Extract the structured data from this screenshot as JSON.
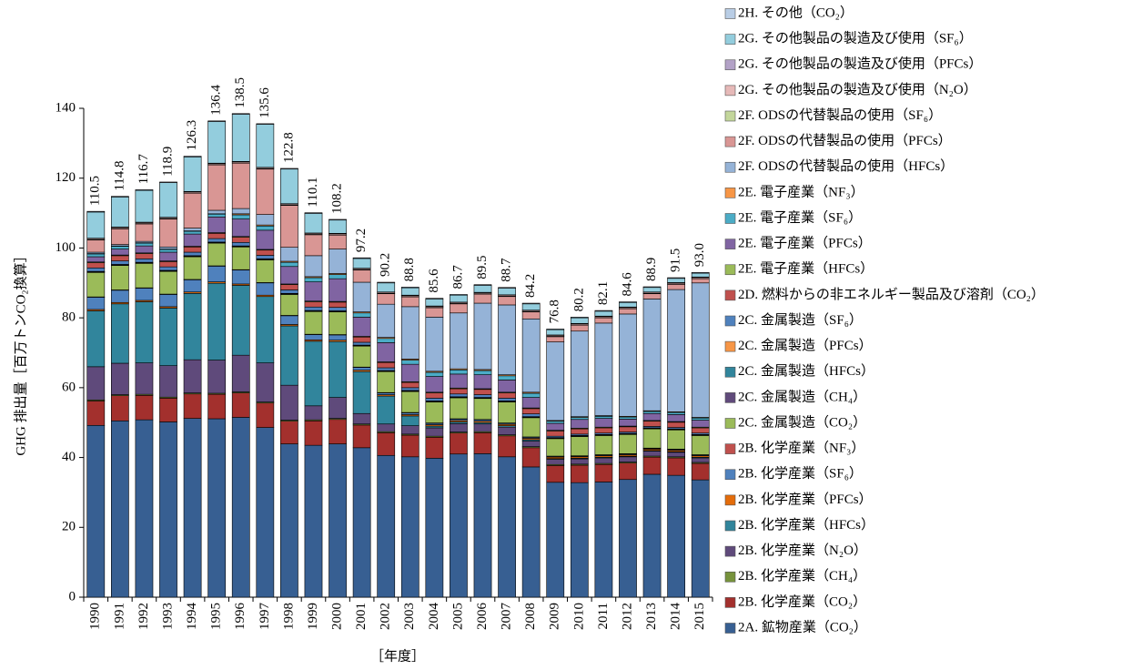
{
  "chart_data": {
    "type": "stacked_bar",
    "y_label": "GHG 排出量［百万トンCO₂換算］",
    "x_label": "［年度］",
    "categories": [
      "1990",
      "1991",
      "1992",
      "1993",
      "1994",
      "1995",
      "1996",
      "1997",
      "1998",
      "1999",
      "2000",
      "2001",
      "2002",
      "2003",
      "2004",
      "2005",
      "2006",
      "2007",
      "2008",
      "2009",
      "2010",
      "2011",
      "2012",
      "2013",
      "2014",
      "2015"
    ],
    "ylim": [
      0,
      140
    ],
    "yticks": [
      0,
      20,
      40,
      60,
      80,
      100,
      120,
      140
    ],
    "totals": {
      "values": [
        110.5,
        114.8,
        116.7,
        118.9,
        126.3,
        136.4,
        138.5,
        135.6,
        122.8,
        110.1,
        108.2,
        97.2,
        90.2,
        88.8,
        85.6,
        86.7,
        89.5,
        88.7,
        84.2,
        76.8,
        80.2,
        82.1,
        84.6,
        88.9,
        91.5,
        93.0
      ],
      "value_labels": [
        "110.5",
        "114.8",
        "116.7",
        "118.9",
        "126.3",
        "136.4",
        "138.5",
        "135.6",
        "122.8",
        "110.1",
        "108.2",
        "97.2",
        "90.2",
        "88.8",
        "85.6",
        "86.7",
        "89.5",
        "88.7",
        "84.2",
        "76.8",
        "80.2",
        "82.1",
        "84.6",
        "88.9",
        "91.5",
        "93.0"
      ]
    },
    "series": [
      {
        "name": "2A. 鉱物産業（CO₂）",
        "color": "#375f92",
        "values": [
          49.2,
          50.5,
          50.8,
          50.2,
          51.2,
          51.1,
          51.5,
          48.6,
          43.9,
          43.5,
          43.9,
          42.8,
          40.6,
          40.2,
          39.8,
          41.0,
          41.1,
          40.2,
          37.3,
          32.9,
          32.8,
          33.0,
          33.7,
          35.2,
          34.9,
          33.6
        ]
      },
      {
        "name": "2B. 化学産業（CO₂）",
        "color": "#a3302d",
        "values": [
          7.0,
          7.2,
          7.0,
          6.8,
          7.0,
          7.0,
          7.0,
          7.0,
          6.5,
          7.0,
          7.0,
          6.5,
          6.5,
          6.2,
          6.0,
          6.0,
          6.0,
          6.0,
          5.5,
          4.8,
          5.0,
          5.0,
          4.7,
          4.9,
          5.0,
          4.7
        ]
      },
      {
        "name": "2B. 化学産業（CH₄）",
        "color": "#77933c",
        "values": [
          0.3,
          0.3,
          0.3,
          0.3,
          0.3,
          0.3,
          0.3,
          0.3,
          0.3,
          0.3,
          0.3,
          0.3,
          0.3,
          0.3,
          0.3,
          0.3,
          0.3,
          0.3,
          0.3,
          0.3,
          0.3,
          0.3,
          0.3,
          0.3,
          0.3,
          0.3
        ]
      },
      {
        "name": "2B. 化学産業（N₂O）",
        "color": "#5f4a7b",
        "values": [
          9.5,
          9.0,
          9.0,
          9.0,
          9.5,
          9.5,
          10.5,
          11.2,
          10.0,
          4.0,
          6.0,
          3.0,
          2.2,
          2.4,
          2.4,
          2.4,
          2.2,
          2.2,
          1.6,
          1.5,
          1.5,
          1.6,
          1.5,
          1.4,
          1.3,
          1.3
        ]
      },
      {
        "name": "2B. 化学産業（HFCs）",
        "color": "#31859c",
        "values": [
          16.0,
          17.0,
          17.5,
          16.5,
          19.0,
          22.0,
          20.0,
          19.0,
          17.0,
          18.5,
          16.0,
          12.0,
          8.0,
          2.8,
          0.5,
          0.5,
          0.4,
          0.4,
          0.4,
          0.2,
          0.2,
          0.2,
          0.2,
          0.2,
          0.2,
          0.2
        ]
      },
      {
        "name": "2B. 化学産業（PFCs）",
        "color": "#e46c0a",
        "values": [
          0.4,
          0.4,
          0.4,
          0.4,
          0.4,
          0.4,
          0.4,
          0.4,
          0.4,
          0.4,
          0.4,
          0.4,
          0.4,
          0.4,
          0.4,
          0.4,
          0.4,
          0.4,
          0.4,
          0.4,
          0.4,
          0.4,
          0.4,
          0.4,
          0.4,
          0.4
        ]
      },
      {
        "name": "2B. 化学産業（SF₆）",
        "color": "#4f81bd",
        "values": [
          3.5,
          3.5,
          3.5,
          3.5,
          3.5,
          4.5,
          4.0,
          3.5,
          2.5,
          1.5,
          1.5,
          0.8,
          0.5,
          0.5,
          0.4,
          0.4,
          0.4,
          0.3,
          0.3,
          0.2,
          0.2,
          0.2,
          0.2,
          0.2,
          0.2,
          0.2
        ]
      },
      {
        "name": "2B. 化学産業（NF₃）",
        "color": "#c0504d",
        "values": [
          0.1,
          0.1,
          0.1,
          0.1,
          0.1,
          0.1,
          0.1,
          0.1,
          0.1,
          0.1,
          0.1,
          0.1,
          0.1,
          0.1,
          0.1,
          0.1,
          0.1,
          0.1,
          0.1,
          0.1,
          0.1,
          0.1,
          0.1,
          0.1,
          0.1,
          0.1
        ]
      },
      {
        "name": "2C. 金属製造（CO₂）",
        "color": "#9bbb59",
        "values": [
          7.0,
          7.0,
          7.0,
          6.5,
          6.5,
          6.5,
          6.5,
          6.5,
          6.0,
          6.5,
          6.5,
          6.0,
          6.0,
          6.0,
          6.0,
          6.0,
          6.0,
          6.0,
          5.5,
          5.0,
          5.5,
          5.5,
          5.5,
          5.5,
          5.5,
          5.5
        ]
      },
      {
        "name": "2C. 金属製造（CH₄）",
        "color": "#604a7b",
        "values": [
          0.1,
          0.1,
          0.1,
          0.1,
          0.1,
          0.1,
          0.1,
          0.1,
          0.1,
          0.1,
          0.1,
          0.1,
          0.1,
          0.1,
          0.1,
          0.1,
          0.1,
          0.1,
          0.1,
          0.1,
          0.1,
          0.1,
          0.1,
          0.1,
          0.1,
          0.1
        ]
      },
      {
        "name": "2C. 金属製造（HFCs）",
        "color": "#31859c",
        "values": [
          0.1,
          0.1,
          0.1,
          0.1,
          0.1,
          0.1,
          0.1,
          0.1,
          0.1,
          0.1,
          0.1,
          0.1,
          0.1,
          0.1,
          0.1,
          0.1,
          0.1,
          0.1,
          0.1,
          0.1,
          0.1,
          0.1,
          0.1,
          0.1,
          0.1,
          0.1
        ]
      },
      {
        "name": "2C. 金属製造（PFCs）",
        "color": "#f79646",
        "values": [
          0.1,
          0.1,
          0.1,
          0.1,
          0.1,
          0.1,
          0.1,
          0.1,
          0.1,
          0.1,
          0.1,
          0.1,
          0.1,
          0.1,
          0.1,
          0.1,
          0.1,
          0.1,
          0.1,
          0.1,
          0.1,
          0.1,
          0.1,
          0.1,
          0.1,
          0.1
        ]
      },
      {
        "name": "2C. 金属製造（SF₆）",
        "color": "#4f81bd",
        "values": [
          1.0,
          1.0,
          1.0,
          1.0,
          1.0,
          1.0,
          1.0,
          1.0,
          1.0,
          1.0,
          1.0,
          0.8,
          0.8,
          0.8,
          0.8,
          0.8,
          0.8,
          0.8,
          0.8,
          0.4,
          0.4,
          0.4,
          0.4,
          0.4,
          0.4,
          0.4
        ]
      },
      {
        "name": "2D. 燃料からの非エネルギー製品及び溶剤（CO₂）",
        "color": "#c0504d",
        "values": [
          1.5,
          1.5,
          1.5,
          1.5,
          1.5,
          1.5,
          1.5,
          1.5,
          1.5,
          1.5,
          1.5,
          1.5,
          1.5,
          1.5,
          1.5,
          1.5,
          1.5,
          1.5,
          1.5,
          1.5,
          1.5,
          1.5,
          1.5,
          1.5,
          1.5,
          1.5
        ]
      },
      {
        "name": "2E. 電子産業（HFCs）",
        "color": "#9bbb59",
        "values": [
          0.2,
          0.2,
          0.2,
          0.2,
          0.2,
          0.2,
          0.2,
          0.2,
          0.2,
          0.2,
          0.2,
          0.2,
          0.2,
          0.2,
          0.2,
          0.2,
          0.2,
          0.2,
          0.2,
          0.2,
          0.2,
          0.2,
          0.2,
          0.2,
          0.2,
          0.2
        ]
      },
      {
        "name": "2E. 電子産業（PFCs）",
        "color": "#8064a2",
        "values": [
          1.5,
          1.7,
          2.0,
          2.5,
          3.5,
          4.5,
          5.0,
          5.5,
          5.0,
          5.5,
          6.5,
          5.5,
          5.5,
          5.0,
          4.5,
          4.0,
          4.0,
          3.5,
          3.0,
          2.0,
          2.5,
          2.5,
          2.0,
          2.0,
          2.0,
          2.0
        ]
      },
      {
        "name": "2E. 電子産業（SF₆）",
        "color": "#4bacc6",
        "values": [
          0.8,
          0.8,
          0.8,
          0.8,
          0.8,
          0.8,
          1.2,
          1.2,
          1.2,
          1.2,
          1.2,
          1.2,
          1.2,
          1.2,
          1.2,
          1.2,
          1.2,
          1.2,
          1.2,
          0.6,
          0.6,
          0.6,
          0.6,
          0.6,
          0.6,
          0.6
        ]
      },
      {
        "name": "2E. 電子産業（NF₃）",
        "color": "#f79646",
        "values": [
          0.1,
          0.1,
          0.1,
          0.1,
          0.1,
          0.1,
          0.3,
          0.3,
          0.3,
          0.3,
          0.3,
          0.3,
          0.3,
          0.3,
          0.3,
          0.3,
          0.3,
          0.3,
          0.3,
          0.2,
          0.2,
          0.2,
          0.2,
          0.2,
          0.2,
          0.2
        ]
      },
      {
        "name": "2F. ODSの代替製品の使用（HFCs）",
        "color": "#95b3d7",
        "values": [
          0.4,
          0.4,
          0.4,
          0.6,
          0.8,
          1.0,
          1.5,
          3.0,
          4.0,
          6.0,
          7.0,
          8.5,
          9.5,
          15.0,
          15.5,
          16.0,
          19.0,
          20.0,
          21.0,
          22.5,
          24.5,
          26.5,
          29.3,
          32.0,
          35.0,
          38.5
        ]
      },
      {
        "name": "2F. ODSの代替製品の使用（PFCs）",
        "color": "#d99694",
        "values": [
          3.5,
          4.5,
          5.0,
          8.0,
          10.0,
          13.0,
          13.0,
          13.0,
          12.0,
          6.0,
          4.0,
          3.5,
          3.0,
          2.8,
          2.7,
          2.6,
          2.6,
          2.4,
          2.0,
          1.5,
          1.7,
          1.5,
          1.5,
          1.5,
          1.5,
          1.2
        ]
      },
      {
        "name": "2F. ODSの代替製品の使用（SF₆）",
        "color": "#c3d69b",
        "values": [
          0.1,
          0.1,
          0.1,
          0.1,
          0.1,
          0.1,
          0.1,
          0.1,
          0.1,
          0.1,
          0.1,
          0.1,
          0.1,
          0.1,
          0.1,
          0.1,
          0.1,
          0.1,
          0.1,
          0.1,
          0.1,
          0.1,
          0.1,
          0.1,
          0.1,
          0.1
        ]
      },
      {
        "name": "2G. その他製品の製造及び使用（N₂O）",
        "color": "#e6b9b8",
        "values": [
          0.3,
          0.3,
          0.3,
          0.3,
          0.3,
          0.3,
          0.3,
          0.3,
          0.3,
          0.3,
          0.3,
          0.3,
          0.3,
          0.3,
          0.3,
          0.3,
          0.3,
          0.3,
          0.3,
          0.3,
          0.3,
          0.3,
          0.3,
          0.3,
          0.3,
          0.3
        ]
      },
      {
        "name": "2G. その他製品の製造及び使用（PFCs）",
        "color": "#b3a2c7",
        "values": [
          0.1,
          0.1,
          0.1,
          0.1,
          0.1,
          0.1,
          0.1,
          0.1,
          0.1,
          0.1,
          0.1,
          0.1,
          0.1,
          0.1,
          0.1,
          0.1,
          0.1,
          0.1,
          0.1,
          0.1,
          0.1,
          0.1,
          0.1,
          0.1,
          0.1,
          0.1
        ]
      },
      {
        "name": "2G. その他製品の製造及び使用（SF₆）",
        "color": "#93cddd",
        "values": [
          7.5,
          8.6,
          9.1,
          9.9,
          9.9,
          11.9,
          13.5,
          12.3,
          9.9,
          5.6,
          3.8,
          2.8,
          2.6,
          2.1,
          2.0,
          2.0,
          2.0,
          1.9,
          1.8,
          1.5,
          1.6,
          1.4,
          1.3,
          1.3,
          1.2,
          1.1
        ]
      },
      {
        "name": "2H. その他（CO₂）",
        "color": "#b9cde5",
        "values": [
          0.2,
          0.2,
          0.2,
          0.2,
          0.2,
          0.2,
          0.2,
          0.2,
          0.2,
          0.2,
          0.2,
          0.2,
          0.2,
          0.2,
          0.2,
          0.2,
          0.2,
          0.2,
          0.2,
          0.2,
          0.2,
          0.2,
          0.2,
          0.2,
          0.2,
          0.2
        ]
      }
    ]
  }
}
